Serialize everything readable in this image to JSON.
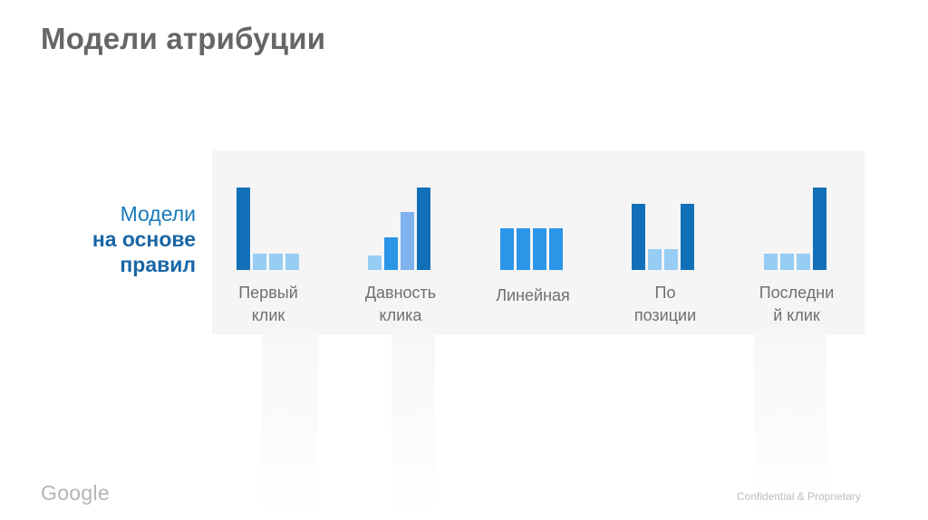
{
  "slide": {
    "title": "Модели атрибуции",
    "side_label": {
      "line1": "Модели",
      "line2": "на основе",
      "line3": "правил"
    },
    "models": [
      {
        "line1": "Первый",
        "line2": "клик",
        "weights": [
          1,
          0.2,
          0.2,
          0.2
        ],
        "shades": [
          "dark",
          "light",
          "light",
          "light"
        ]
      },
      {
        "line1": "Давность",
        "line2": "клика",
        "weights": [
          0.18,
          0.4,
          0.7,
          1
        ],
        "shades": [
          "light",
          "medium",
          "soft",
          "dark"
        ]
      },
      {
        "line1": "Линейная",
        "line2": "",
        "weights": [
          0.5,
          0.5,
          0.5,
          0.5
        ],
        "shades": [
          "medium",
          "medium",
          "medium",
          "medium"
        ]
      },
      {
        "line1": "По",
        "line2": "позиции",
        "weights": [
          0.8,
          0.25,
          0.25,
          0.8
        ],
        "shades": [
          "dark",
          "light",
          "light",
          "dark"
        ]
      },
      {
        "line1": "Последни",
        "line2": "й клик",
        "weights": [
          0.2,
          0.2,
          0.2,
          1
        ],
        "shades": [
          "light",
          "light",
          "light",
          "dark"
        ]
      }
    ],
    "colors": {
      "dark": "#1170b8",
      "medium": "#2b95e8",
      "soft": "#7fb2ee",
      "light": "#97cdf5",
      "title": "#666666",
      "accent": "#1866a6"
    },
    "footer": {
      "logo": "Google",
      "note": "Confidential & Proprietary"
    }
  }
}
